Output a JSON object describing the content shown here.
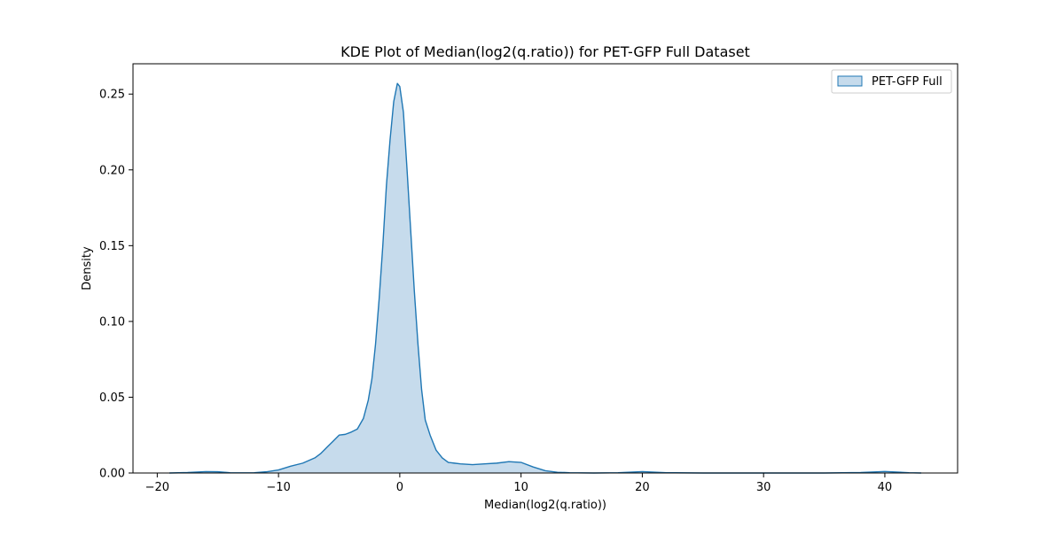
{
  "chart_data": {
    "type": "area",
    "title": "KDE Plot of Median(log2(q.ratio)) for PET-GFP Full Dataset",
    "xlabel": "Median(log2(q.ratio))",
    "ylabel": "Density",
    "xlim": [
      -22,
      46
    ],
    "ylim": [
      0,
      0.27
    ],
    "x_ticks": [
      -20,
      -10,
      0,
      10,
      20,
      30,
      40
    ],
    "x_tick_labels": [
      "−20",
      "−10",
      "0",
      "10",
      "20",
      "30",
      "40"
    ],
    "y_ticks": [
      0.0,
      0.05,
      0.1,
      0.15,
      0.2,
      0.25
    ],
    "y_tick_labels": [
      "0.00",
      "0.05",
      "0.10",
      "0.15",
      "0.20",
      "0.25"
    ],
    "grid": false,
    "legend_position": "top-right",
    "series": [
      {
        "name": "PET-GFP Full",
        "color": "#1f77b4",
        "fill_color": "#c6dbec",
        "x": [
          -19,
          -17.5,
          -16,
          -15,
          -14,
          -13,
          -12,
          -11,
          -10,
          -9,
          -8,
          -7,
          -6.5,
          -6,
          -5.5,
          -5,
          -4.5,
          -4,
          -3.5,
          -3,
          -2.6,
          -2.3,
          -2,
          -1.7,
          -1.4,
          -1.1,
          -0.8,
          -0.5,
          -0.2,
          0,
          0.3,
          0.6,
          0.9,
          1.2,
          1.5,
          1.8,
          2.1,
          2.5,
          3,
          3.5,
          4,
          4.5,
          5,
          6,
          7,
          8,
          9,
          10,
          11,
          12,
          13,
          14,
          16,
          18,
          20,
          22,
          25,
          30,
          35,
          38,
          40,
          42,
          43
        ],
        "values": [
          0,
          0.0003,
          0.0009,
          0.0008,
          0.0002,
          0.0001,
          0.0002,
          0.0008,
          0.002,
          0.0045,
          0.0065,
          0.01,
          0.013,
          0.017,
          0.021,
          0.025,
          0.0255,
          0.027,
          0.029,
          0.036,
          0.048,
          0.062,
          0.085,
          0.115,
          0.15,
          0.19,
          0.22,
          0.245,
          0.257,
          0.255,
          0.238,
          0.2,
          0.16,
          0.12,
          0.085,
          0.055,
          0.035,
          0.025,
          0.015,
          0.01,
          0.007,
          0.0065,
          0.006,
          0.0055,
          0.006,
          0.0065,
          0.0075,
          0.007,
          0.004,
          0.0015,
          0.0005,
          0.0002,
          0,
          0.0002,
          0.0009,
          0.0002,
          0,
          0,
          0,
          0.0003,
          0.001,
          0.0002,
          0
        ]
      }
    ]
  }
}
